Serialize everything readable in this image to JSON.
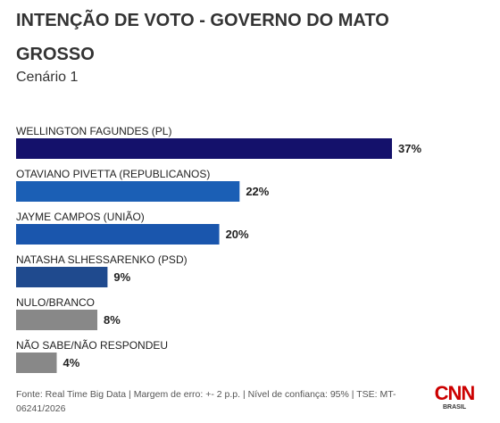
{
  "chart_data": {
    "type": "bar",
    "orientation": "horizontal",
    "title": "INTENÇÃO DE VOTO - GOVERNO DO MATO GROSSO",
    "subtitle": "Cenário 1",
    "categories": [
      "WELLINGTON FAGUNDES (PL)",
      "OTAVIANO PIVETTA (REPUBLICANOS)",
      "JAYME CAMPOS (UNIÃO)",
      "NATASHA SLHESSARENKO (PSD)",
      "NULO/BRANCO",
      "NÃO SABE/NÃO RESPONDEU"
    ],
    "values": [
      37,
      22,
      20,
      9,
      8,
      4
    ],
    "value_labels": [
      "37%",
      "22%",
      "20%",
      "9%",
      "8%",
      "4%"
    ],
    "colors": [
      "#14116b",
      "#1b5fb5",
      "#1a56ad",
      "#1f4a8e",
      "#888888",
      "#888888"
    ],
    "source": "Fonte: Real Time Big Data | Margem de erro: +- 2 p.p. | Nível de confiança: 95% | TSE: MT-06241/2026",
    "brand": "CNN",
    "brand_sub": "BRASIL"
  }
}
